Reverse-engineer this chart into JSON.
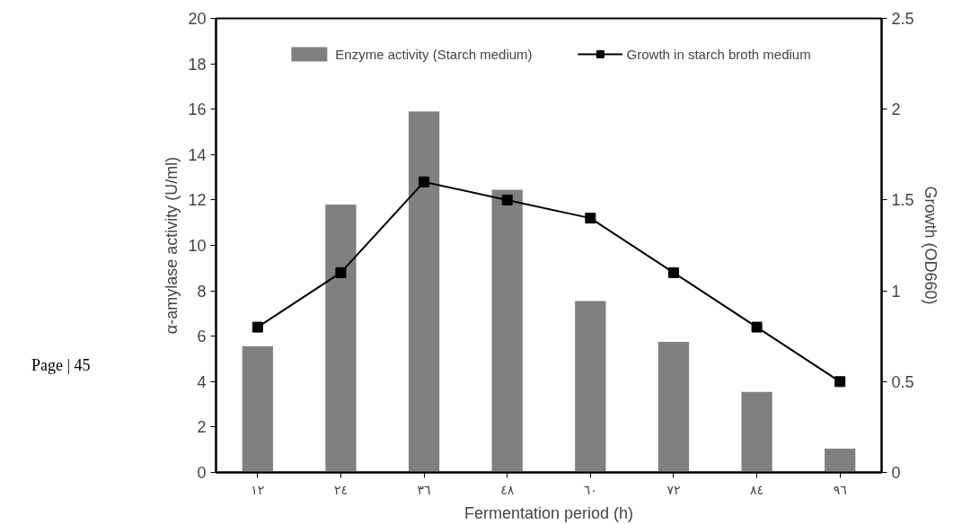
{
  "chart_data": {
    "type": "bar",
    "categories": [
      "١٢",
      "٢٤",
      "٣٦",
      "٤٨",
      "٦٠",
      "٧٢",
      "٨٤",
      "٩٦"
    ],
    "xlabel": "Fermentation period (h)",
    "ylabel": "α-amylase activity (U/ml)",
    "y2label": "Growth (OD660)",
    "series": [
      {
        "name": "Enzyme activity (Starch medium)",
        "color": "#808080",
        "values": [
          5.55,
          11.8,
          15.9,
          12.45,
          7.55,
          5.75,
          3.55,
          1.05
        ]
      },
      {
        "name": "Growth in starch broth medium",
        "type": "line",
        "axis": "y2",
        "color": "#000000",
        "marker": "square",
        "values": [
          0.8,
          1.1,
          1.6,
          1.5,
          1.4,
          1.1,
          0.8,
          0.5
        ]
      }
    ],
    "ylim": [
      0,
      20
    ],
    "yticks": [
      0,
      2,
      4,
      6,
      8,
      10,
      12,
      14,
      16,
      18,
      20
    ],
    "y2lim": [
      0,
      2.5
    ],
    "y2ticks": [
      0,
      0.5,
      1,
      1.5,
      2,
      2.5
    ],
    "grid": false,
    "legend": "top",
    "annotations": [
      "Page | 45"
    ]
  }
}
